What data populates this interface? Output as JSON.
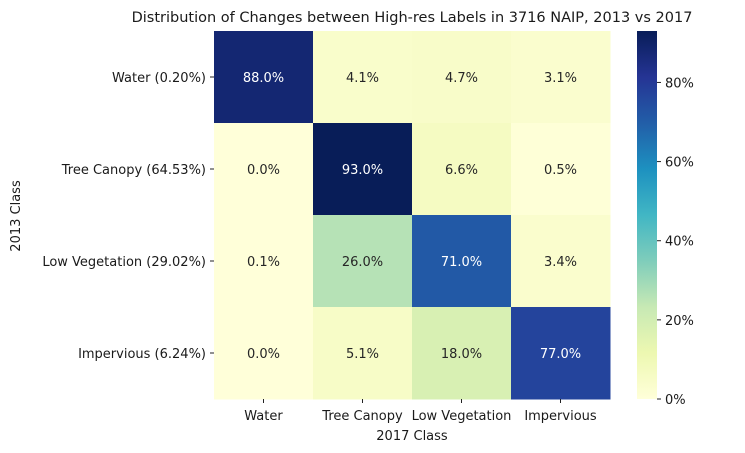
{
  "chart_data": {
    "type": "heatmap",
    "title": "Distribution of Changes between High-res Labels in 3716 NAIP, 2013 vs 2017",
    "xlabel": "2017 Class",
    "ylabel": "2013 Class",
    "x_categories": [
      "Water",
      "Tree Canopy",
      "Low Vegetation",
      "Impervious"
    ],
    "y_categories": [
      "Water (0.20%)",
      "Tree Canopy (64.53%)",
      "Low Vegetation (29.02%)",
      "Impervious (6.24%)"
    ],
    "values": [
      [
        88.0,
        4.1,
        4.7,
        3.1
      ],
      [
        0.0,
        93.0,
        6.6,
        0.5
      ],
      [
        0.1,
        26.0,
        71.0,
        3.4
      ],
      [
        0.0,
        5.1,
        18.0,
        77.0
      ]
    ],
    "cell_labels": [
      [
        "88.0%",
        "4.1%",
        "4.7%",
        "3.1%"
      ],
      [
        "0.0%",
        "93.0%",
        "6.6%",
        "0.5%"
      ],
      [
        "0.1%",
        "26.0%",
        "71.0%",
        "3.4%"
      ],
      [
        "0.0%",
        "5.1%",
        "18.0%",
        "77.0%"
      ]
    ],
    "colormap": "YlGnBu",
    "color_range": [
      0,
      93
    ],
    "colorbar_ticks": [
      0,
      20,
      40,
      60,
      80
    ],
    "colorbar_tick_labels": [
      "0%",
      "20%",
      "40%",
      "60%",
      "80%"
    ]
  }
}
